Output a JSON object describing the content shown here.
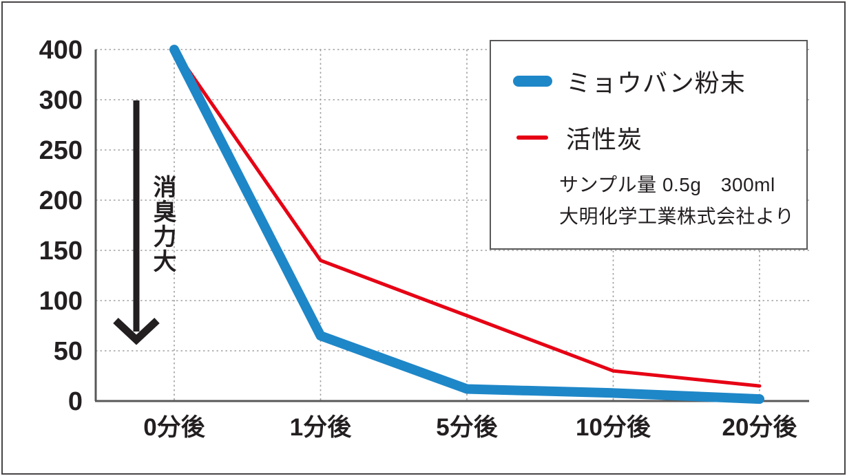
{
  "chart_data": {
    "type": "line",
    "title": "",
    "xlabel": "",
    "ylabel": "",
    "categories": [
      "0分後",
      "1分後",
      "5分後",
      "10分後",
      "20分後"
    ],
    "series": [
      {
        "name": "ミョウバン粉末",
        "color": "#1e87c8",
        "stroke_width": 14,
        "values": [
          400,
          65,
          12,
          8,
          2
        ]
      },
      {
        "name": "活性炭",
        "color": "#e60014",
        "stroke_width": 5,
        "values": [
          400,
          140,
          85,
          30,
          15
        ]
      }
    ],
    "y_ticks": [
      400,
      300,
      250,
      200,
      150,
      100,
      50,
      0
    ],
    "y_axis_scale": "ticks equally spaced (non-linear value scale)",
    "grid": true,
    "legend_position": "top-right",
    "annotation": {
      "arrow_label": "消臭力大",
      "arrow_direction": "down"
    },
    "notes": [
      "サンプル量 0.5g　300ml",
      "大明化学工業株式会社より"
    ],
    "colors": {
      "axis": "#595757",
      "grid": "#9f9f9f",
      "text": "#231f20"
    }
  }
}
